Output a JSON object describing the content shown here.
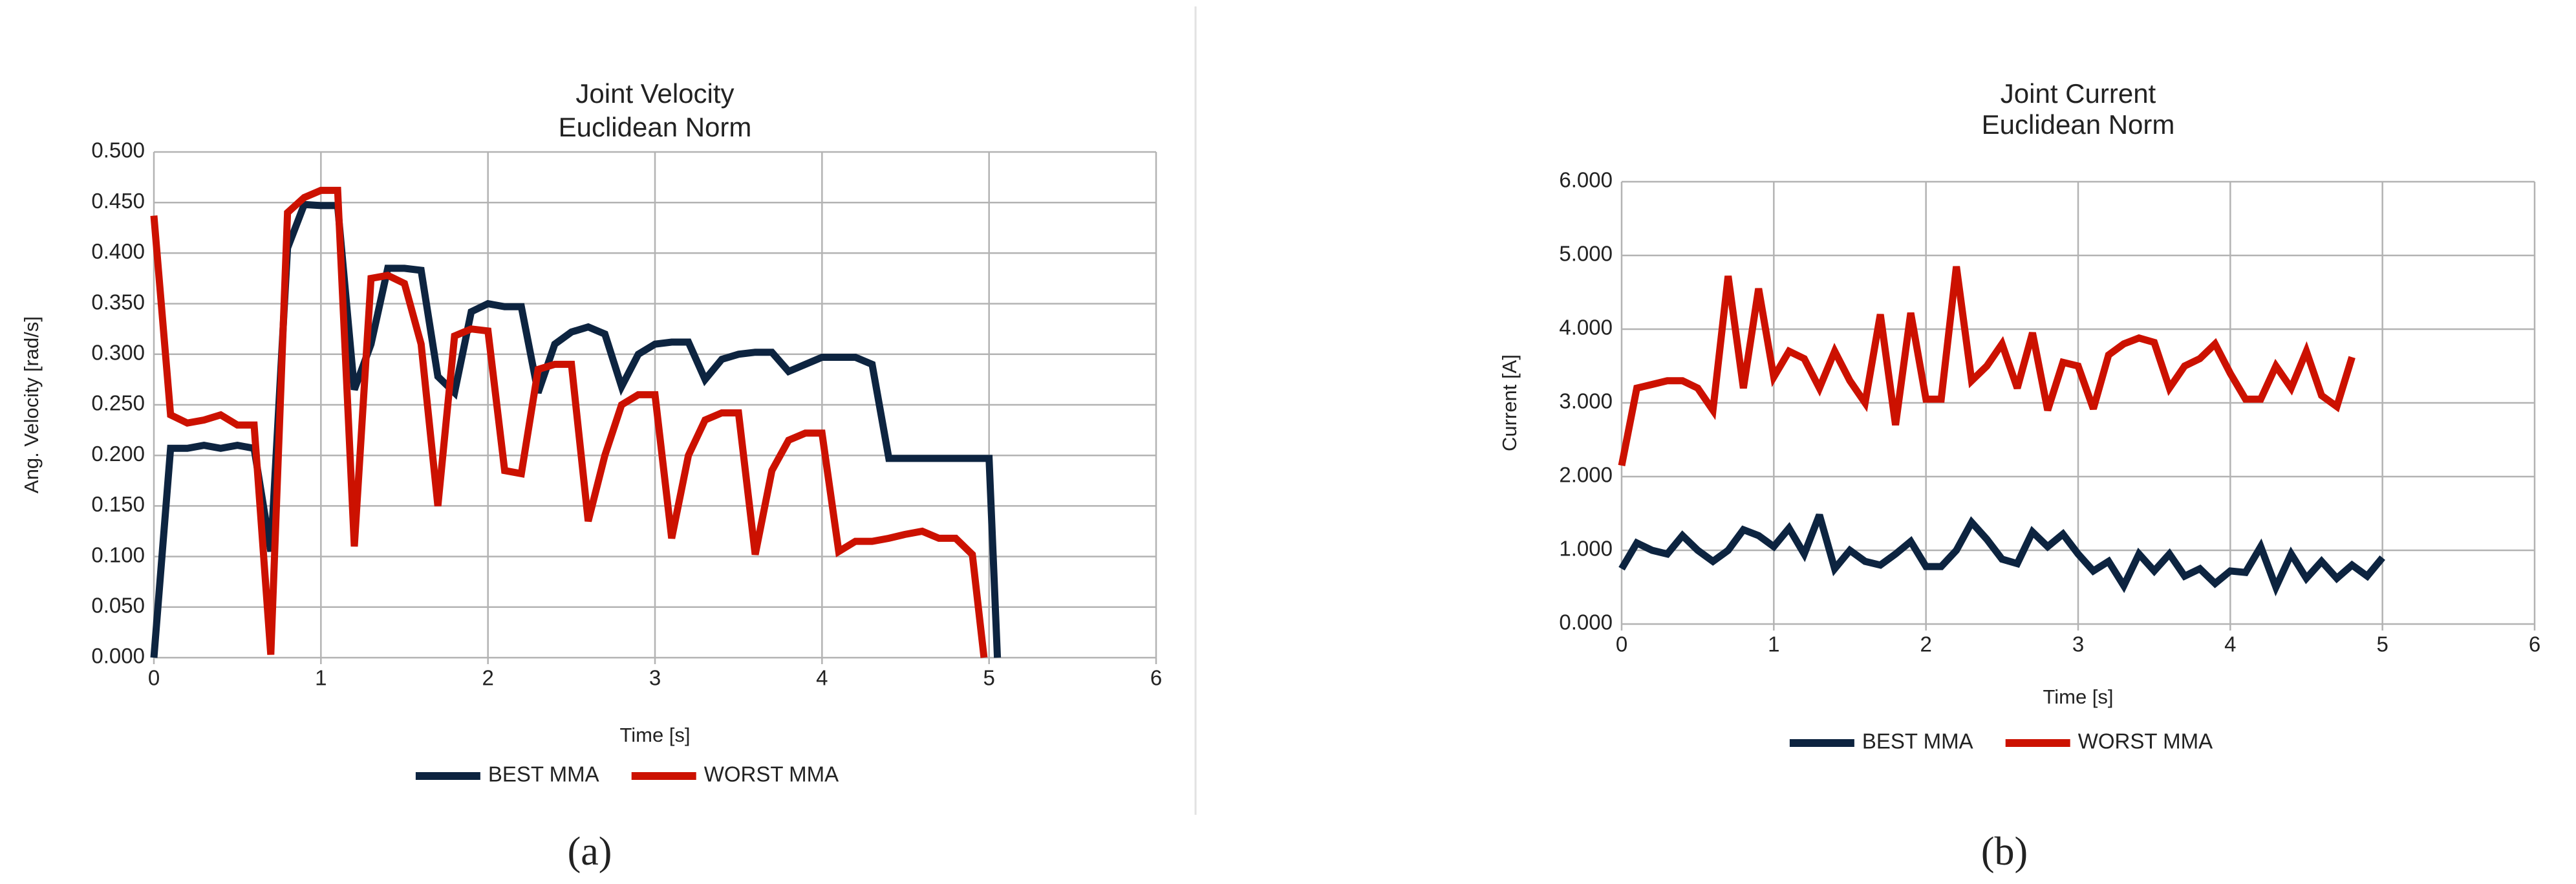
{
  "chart_data": [
    {
      "type": "line",
      "title": [
        "Joint Velocity",
        "Euclidean Norm"
      ],
      "xlabel": "Time [s]",
      "ylabel": "Ang. Velocity [rad/s]",
      "caption": "(a)",
      "xlim": [
        0,
        6
      ],
      "xticks": [
        0,
        1,
        2,
        3,
        4,
        5,
        6
      ],
      "ylim": [
        0,
        0.5
      ],
      "yticks": [
        {
          "value": 0,
          "label": "0.000"
        },
        {
          "value": 0.05,
          "label": "0.050"
        },
        {
          "value": 0.1,
          "label": "0.100"
        },
        {
          "value": 0.15,
          "label": "0.150"
        },
        {
          "value": 0.2,
          "label": "0.200"
        },
        {
          "value": 0.25,
          "label": "0.250"
        },
        {
          "value": 0.3,
          "label": "0.300"
        },
        {
          "value": 0.35,
          "label": "0.350"
        },
        {
          "value": 0.4,
          "label": "0.400"
        },
        {
          "value": 0.45,
          "label": "0.450"
        },
        {
          "value": 0.5,
          "label": "0.500"
        }
      ],
      "grid": true,
      "series": [
        {
          "name": "BEST MMA",
          "color": "#0d2440",
          "x": [
            0,
            0.1,
            0.2,
            0.3,
            0.4,
            0.5,
            0.6,
            0.7,
            0.8,
            0.9,
            1.0,
            1.1,
            1.2,
            1.3,
            1.4,
            1.5,
            1.6,
            1.7,
            1.8,
            1.9,
            2.0,
            2.1,
            2.2,
            2.3,
            2.4,
            2.5,
            2.6,
            2.7,
            2.8,
            2.9,
            3.0,
            3.1,
            3.2,
            3.3,
            3.4,
            3.5,
            3.6,
            3.7,
            3.8,
            3.9,
            4.0,
            4.1,
            4.2,
            4.3,
            4.4,
            4.5,
            4.6,
            4.7,
            4.8,
            4.9,
            5.0,
            5.05
          ],
          "values": [
            0,
            0.207,
            0.207,
            0.21,
            0.207,
            0.21,
            0.207,
            0.105,
            0.405,
            0.448,
            0.447,
            0.447,
            0.265,
            0.31,
            0.385,
            0.385,
            0.383,
            0.278,
            0.262,
            0.342,
            0.35,
            0.347,
            0.347,
            0.262,
            0.31,
            0.322,
            0.327,
            0.32,
            0.268,
            0.3,
            0.31,
            0.312,
            0.312,
            0.275,
            0.295,
            0.3,
            0.302,
            0.302,
            0.283,
            0.29,
            0.297,
            0.297,
            0.297,
            0.29,
            0.197,
            0.197,
            0.197,
            0.197,
            0.197,
            0.197,
            0.197,
            0
          ]
        },
        {
          "name": "WORST MMA",
          "color": "#cc1100",
          "x": [
            0,
            0.1,
            0.2,
            0.3,
            0.4,
            0.5,
            0.6,
            0.7,
            0.8,
            0.9,
            1.0,
            1.1,
            1.2,
            1.3,
            1.4,
            1.5,
            1.6,
            1.7,
            1.8,
            1.9,
            2.0,
            2.1,
            2.2,
            2.3,
            2.4,
            2.5,
            2.6,
            2.7,
            2.8,
            2.9,
            3.0,
            3.1,
            3.2,
            3.3,
            3.4,
            3.5,
            3.6,
            3.7,
            3.8,
            3.9,
            4.0,
            4.1,
            4.2,
            4.3,
            4.4,
            4.5,
            4.6,
            4.7,
            4.8,
            4.9,
            4.97
          ],
          "values": [
            0.437,
            0.24,
            0.232,
            0.235,
            0.24,
            0.23,
            0.23,
            0.003,
            0.44,
            0.455,
            0.462,
            0.462,
            0.11,
            0.375,
            0.378,
            0.37,
            0.31,
            0.15,
            0.318,
            0.325,
            0.323,
            0.185,
            0.182,
            0.285,
            0.29,
            0.29,
            0.135,
            0.2,
            0.25,
            0.26,
            0.26,
            0.118,
            0.2,
            0.235,
            0.242,
            0.242,
            0.102,
            0.185,
            0.215,
            0.222,
            0.222,
            0.105,
            0.115,
            0.115,
            0.118,
            0.122,
            0.125,
            0.118,
            0.118,
            0.102,
            0
          ]
        }
      ]
    },
    {
      "type": "line",
      "title": [
        "Joint Current",
        "Euclidean Norm"
      ],
      "xlabel": "Time [s]",
      "ylabel": "Current [A]",
      "caption": "(b)",
      "xlim": [
        0,
        6
      ],
      "xticks": [
        0,
        1,
        2,
        3,
        4,
        5,
        6
      ],
      "ylim": [
        0,
        6
      ],
      "yticks": [
        {
          "value": 0,
          "label": "0.000"
        },
        {
          "value": 1,
          "label": "1.000"
        },
        {
          "value": 2,
          "label": "2.000"
        },
        {
          "value": 3,
          "label": "3.000"
        },
        {
          "value": 4,
          "label": "4.000"
        },
        {
          "value": 5,
          "label": "5.000"
        },
        {
          "value": 6,
          "label": "6.000"
        }
      ],
      "grid": true,
      "series": [
        {
          "name": "BEST MMA",
          "color": "#0d2440",
          "x": [
            0,
            0.1,
            0.2,
            0.3,
            0.4,
            0.5,
            0.6,
            0.7,
            0.8,
            0.9,
            1.0,
            1.1,
            1.2,
            1.3,
            1.4,
            1.5,
            1.6,
            1.7,
            1.8,
            1.9,
            2.0,
            2.1,
            2.2,
            2.3,
            2.4,
            2.5,
            2.6,
            2.7,
            2.8,
            2.9,
            3.0,
            3.1,
            3.2,
            3.3,
            3.4,
            3.5,
            3.6,
            3.7,
            3.8,
            3.9,
            4.0,
            4.1,
            4.2,
            4.3,
            4.4,
            4.5,
            4.6,
            4.7,
            4.8,
            4.9,
            5.0
          ],
          "values": [
            0.75,
            1.1,
            1.0,
            0.95,
            1.2,
            1.0,
            0.85,
            1.0,
            1.28,
            1.2,
            1.05,
            1.3,
            0.95,
            1.48,
            0.75,
            1.0,
            0.85,
            0.8,
            0.95,
            1.12,
            0.78,
            0.78,
            1.0,
            1.38,
            1.15,
            0.88,
            0.82,
            1.25,
            1.05,
            1.22,
            0.95,
            0.72,
            0.85,
            0.52,
            0.95,
            0.72,
            0.95,
            0.65,
            0.75,
            0.55,
            0.72,
            0.7,
            1.05,
            0.5,
            0.95,
            0.62,
            0.85,
            0.62,
            0.8,
            0.65,
            0.9
          ]
        },
        {
          "name": "WORST MMA",
          "color": "#cc1100",
          "x": [
            0,
            0.1,
            0.2,
            0.3,
            0.4,
            0.5,
            0.6,
            0.7,
            0.8,
            0.9,
            1.0,
            1.1,
            1.2,
            1.3,
            1.4,
            1.5,
            1.6,
            1.7,
            1.8,
            1.9,
            2.0,
            2.1,
            2.2,
            2.3,
            2.4,
            2.5,
            2.6,
            2.7,
            2.8,
            2.9,
            3.0,
            3.1,
            3.2,
            3.3,
            3.4,
            3.5,
            3.6,
            3.7,
            3.8,
            3.9,
            4.0,
            4.1,
            4.2,
            4.3,
            4.4,
            4.5,
            4.6,
            4.7,
            4.8
          ],
          "values": [
            2.15,
            3.2,
            3.25,
            3.3,
            3.3,
            3.2,
            2.9,
            4.72,
            3.2,
            4.55,
            3.35,
            3.7,
            3.6,
            3.2,
            3.7,
            3.3,
            3.0,
            4.2,
            2.7,
            4.22,
            3.05,
            3.05,
            4.85,
            3.3,
            3.5,
            3.8,
            3.2,
            3.95,
            2.9,
            3.55,
            3.5,
            2.92,
            3.65,
            3.8,
            3.88,
            3.82,
            3.2,
            3.5,
            3.6,
            3.8,
            3.4,
            3.05,
            3.05,
            3.5,
            3.2,
            3.7,
            3.1,
            2.95,
            3.62
          ]
        }
      ]
    }
  ]
}
